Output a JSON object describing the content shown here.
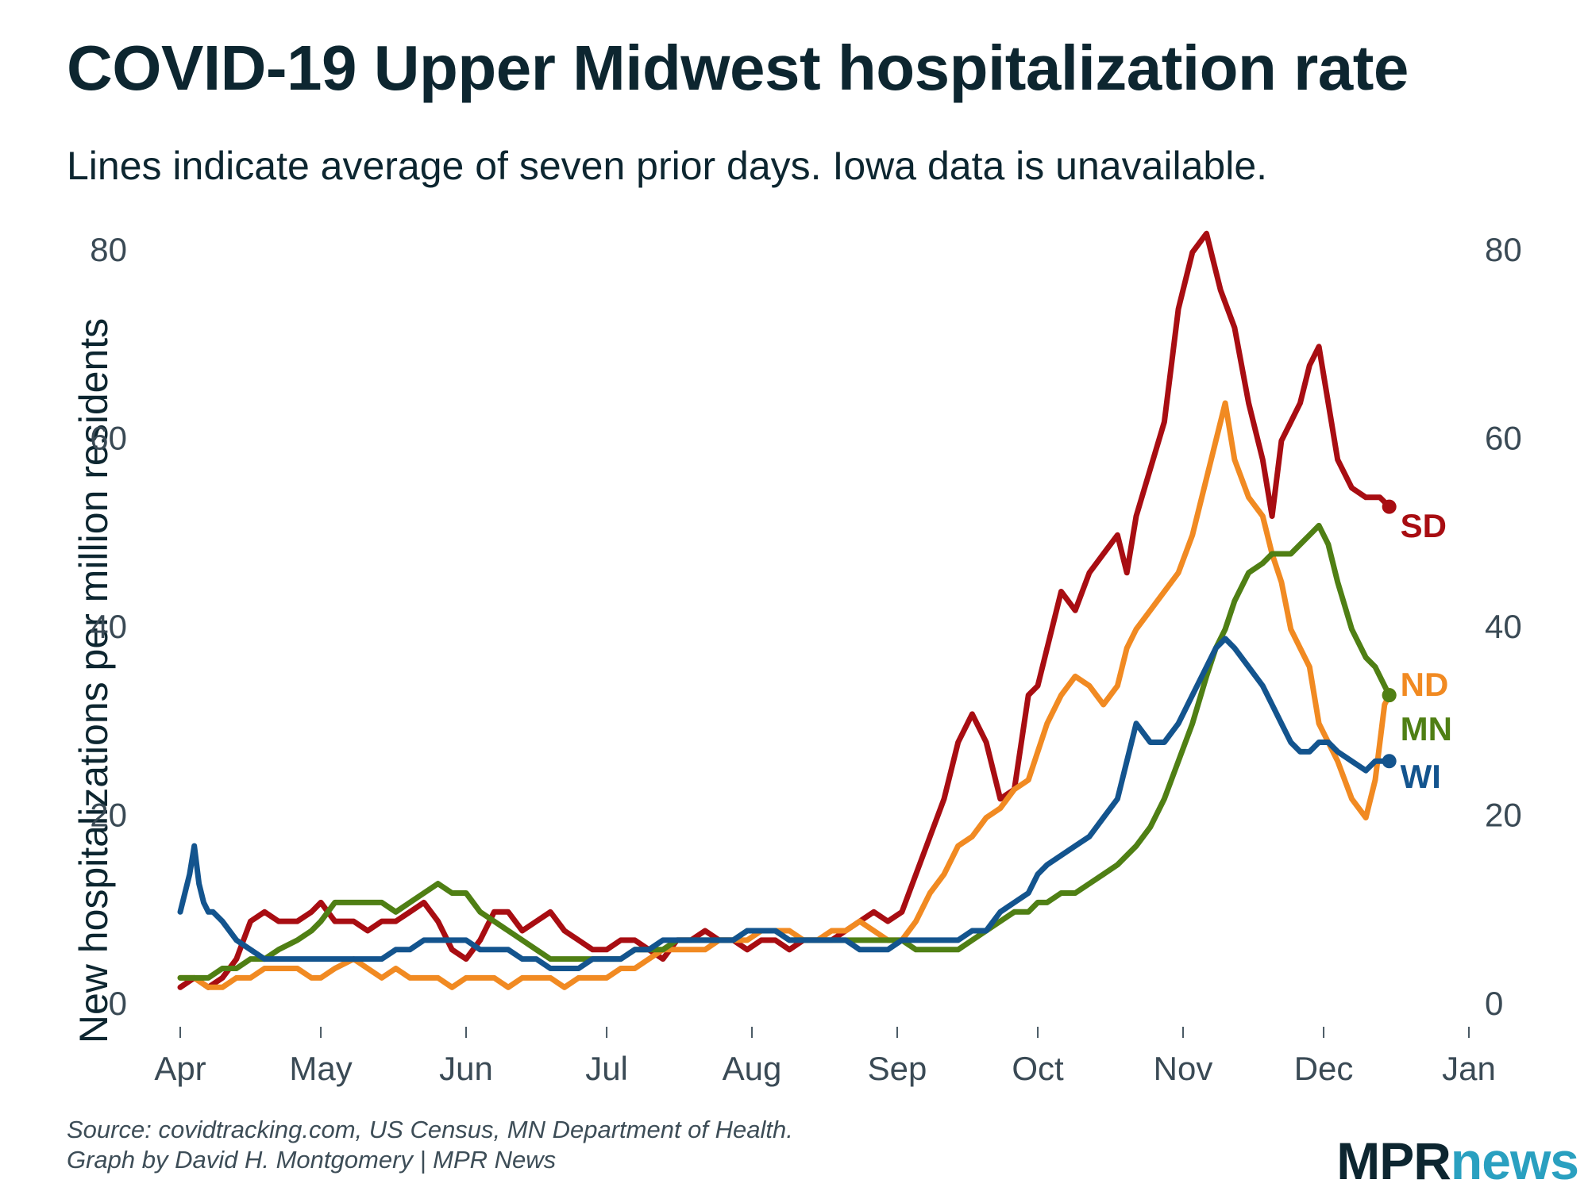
{
  "title": "COVID-19 Upper Midwest hospitalization rate",
  "subtitle": "Lines indicate average of seven prior days. Iowa data is unavailable.",
  "source_line1": "Source: covidtracking.com, US Census, MN Department of Health.",
  "source_line2": "Graph by David H. Montgomery | MPR News",
  "logo": {
    "part1": "MPR",
    "part2": "news"
  },
  "chart_data": {
    "type": "line",
    "ylabel": "New hospitalizations per million residents",
    "xlabel": "",
    "ylim": [
      0,
      85
    ],
    "yticks": [
      0,
      20,
      40,
      60,
      80
    ],
    "xlim_days": [
      0,
      275
    ],
    "xticks": [
      {
        "day": 0,
        "label": "Apr"
      },
      {
        "day": 30,
        "label": "May"
      },
      {
        "day": 61,
        "label": "Jun"
      },
      {
        "day": 91,
        "label": "Jul"
      },
      {
        "day": 122,
        "label": "Aug"
      },
      {
        "day": 153,
        "label": "Sep"
      },
      {
        "day": 183,
        "label": "Oct"
      },
      {
        "day": 214,
        "label": "Nov"
      },
      {
        "day": 244,
        "label": "Dec"
      },
      {
        "day": 275,
        "label": "Jan"
      }
    ],
    "x_unit": "days since Apr 1, 2020",
    "series": [
      {
        "name": "SD",
        "color": "#a80d12",
        "x": [
          0,
          3,
          6,
          9,
          12,
          15,
          18,
          21,
          25,
          28,
          30,
          33,
          37,
          40,
          43,
          46,
          49,
          52,
          55,
          58,
          61,
          64,
          67,
          70,
          73,
          76,
          79,
          82,
          85,
          88,
          91,
          94,
          97,
          100,
          103,
          106,
          109,
          112,
          115,
          118,
          121,
          124,
          127,
          130,
          133,
          136,
          139,
          142,
          145,
          148,
          151,
          154,
          157,
          160,
          163,
          166,
          169,
          172,
          175,
          178,
          181,
          183,
          185,
          188,
          191,
          194,
          197,
          200,
          202,
          204,
          207,
          210,
          213,
          216,
          219,
          221,
          222,
          225,
          228,
          231,
          233,
          235,
          237,
          239,
          241,
          243,
          245,
          247,
          250,
          253,
          256,
          258
        ],
        "y": [
          2,
          3,
          2,
          3,
          5,
          9,
          10,
          9,
          9,
          10,
          11,
          9,
          9,
          8,
          9,
          9,
          10,
          11,
          9,
          6,
          5,
          7,
          10,
          10,
          8,
          9,
          10,
          8,
          7,
          6,
          6,
          7,
          7,
          6,
          5,
          7,
          7,
          8,
          7,
          7,
          6,
          7,
          7,
          6,
          7,
          7,
          7,
          8,
          9,
          10,
          9,
          10,
          14,
          18,
          22,
          28,
          31,
          28,
          22,
          23,
          33,
          34,
          38,
          44,
          42,
          46,
          48,
          50,
          46,
          52,
          57,
          62,
          74,
          80,
          82,
          78,
          76,
          72,
          64,
          58,
          52,
          60,
          62,
          64,
          68,
          70,
          64,
          58,
          55,
          54,
          54,
          53
        ]
      },
      {
        "name": "ND",
        "color": "#f18a22",
        "x": [
          0,
          3,
          6,
          9,
          12,
          15,
          18,
          21,
          25,
          28,
          30,
          33,
          37,
          40,
          43,
          46,
          49,
          52,
          55,
          58,
          61,
          64,
          67,
          70,
          73,
          76,
          79,
          82,
          85,
          88,
          91,
          94,
          97,
          100,
          103,
          106,
          109,
          112,
          115,
          118,
          121,
          124,
          127,
          130,
          133,
          136,
          139,
          142,
          145,
          148,
          151,
          154,
          157,
          160,
          163,
          166,
          169,
          172,
          175,
          178,
          181,
          183,
          185,
          188,
          191,
          194,
          197,
          200,
          202,
          204,
          207,
          210,
          213,
          216,
          219,
          221,
          223,
          225,
          228,
          231,
          233,
          235,
          237,
          239,
          241,
          243,
          245,
          247,
          250,
          253,
          255,
          257,
          258
        ],
        "y": [
          3,
          3,
          2,
          2,
          3,
          3,
          4,
          4,
          4,
          3,
          3,
          4,
          5,
          4,
          3,
          4,
          3,
          3,
          3,
          2,
          3,
          3,
          3,
          2,
          3,
          3,
          3,
          2,
          3,
          3,
          3,
          4,
          4,
          5,
          6,
          6,
          6,
          6,
          7,
          7,
          7,
          8,
          8,
          8,
          7,
          7,
          8,
          8,
          9,
          8,
          7,
          7,
          9,
          12,
          14,
          17,
          18,
          20,
          21,
          23,
          24,
          27,
          30,
          33,
          35,
          34,
          32,
          34,
          38,
          40,
          42,
          44,
          46,
          50,
          56,
          60,
          64,
          58,
          54,
          52,
          48,
          45,
          40,
          38,
          36,
          30,
          28,
          26,
          22,
          20,
          24,
          32,
          33
        ]
      },
      {
        "name": "MN",
        "color": "#4f7f14",
        "x": [
          0,
          3,
          6,
          9,
          12,
          15,
          18,
          21,
          25,
          28,
          30,
          33,
          37,
          40,
          43,
          46,
          49,
          52,
          55,
          58,
          61,
          64,
          67,
          70,
          73,
          76,
          79,
          82,
          85,
          88,
          91,
          94,
          97,
          100,
          103,
          106,
          109,
          112,
          115,
          118,
          121,
          124,
          127,
          130,
          133,
          136,
          139,
          142,
          145,
          148,
          151,
          154,
          157,
          160,
          163,
          166,
          169,
          172,
          175,
          178,
          181,
          183,
          185,
          188,
          191,
          194,
          197,
          200,
          202,
          204,
          207,
          210,
          213,
          216,
          219,
          221,
          223,
          225,
          228,
          231,
          233,
          235,
          237,
          239,
          241,
          243,
          245,
          247,
          250,
          253,
          255,
          257,
          258
        ],
        "y": [
          3,
          3,
          3,
          4,
          4,
          5,
          5,
          6,
          7,
          8,
          9,
          11,
          11,
          11,
          11,
          10,
          11,
          12,
          13,
          12,
          12,
          10,
          9,
          8,
          7,
          6,
          5,
          5,
          5,
          5,
          5,
          5,
          6,
          6,
          6,
          7,
          7,
          7,
          7,
          7,
          8,
          8,
          8,
          7,
          7,
          7,
          7,
          7,
          7,
          7,
          7,
          7,
          6,
          6,
          6,
          6,
          7,
          8,
          9,
          10,
          10,
          11,
          11,
          12,
          12,
          13,
          14,
          15,
          16,
          17,
          19,
          22,
          26,
          30,
          35,
          38,
          40,
          43,
          46,
          47,
          48,
          48,
          48,
          49,
          50,
          51,
          49,
          45,
          40,
          37,
          36,
          34,
          33
        ]
      },
      {
        "name": "WI",
        "color": "#13548e",
        "x": [
          0,
          1,
          2,
          3,
          4,
          5,
          6,
          7,
          9,
          12,
          15,
          18,
          21,
          25,
          28,
          30,
          33,
          37,
          40,
          43,
          46,
          49,
          52,
          55,
          58,
          61,
          64,
          67,
          70,
          73,
          76,
          79,
          82,
          85,
          88,
          91,
          94,
          97,
          100,
          103,
          106,
          109,
          112,
          115,
          118,
          121,
          124,
          127,
          130,
          133,
          136,
          139,
          142,
          145,
          148,
          151,
          154,
          157,
          160,
          163,
          166,
          169,
          172,
          175,
          178,
          181,
          183,
          185,
          188,
          191,
          194,
          197,
          200,
          202,
          204,
          207,
          210,
          213,
          216,
          219,
          221,
          223,
          225,
          228,
          231,
          233,
          235,
          237,
          239,
          241,
          243,
          245,
          247,
          250,
          253,
          255,
          257,
          258
        ],
        "y": [
          10,
          12,
          14,
          17,
          13,
          11,
          10,
          10,
          9,
          7,
          6,
          5,
          5,
          5,
          5,
          5,
          5,
          5,
          5,
          5,
          6,
          6,
          7,
          7,
          7,
          7,
          6,
          6,
          6,
          5,
          5,
          4,
          4,
          4,
          5,
          5,
          5,
          6,
          6,
          7,
          7,
          7,
          7,
          7,
          7,
          8,
          8,
          8,
          7,
          7,
          7,
          7,
          7,
          6,
          6,
          6,
          7,
          7,
          7,
          7,
          7,
          8,
          8,
          10,
          11,
          12,
          14,
          15,
          16,
          17,
          18,
          20,
          22,
          26,
          30,
          28,
          28,
          30,
          33,
          36,
          38,
          39,
          38,
          36,
          34,
          32,
          30,
          28,
          27,
          27,
          28,
          28,
          27,
          26,
          25,
          26,
          26,
          26
        ]
      }
    ]
  }
}
